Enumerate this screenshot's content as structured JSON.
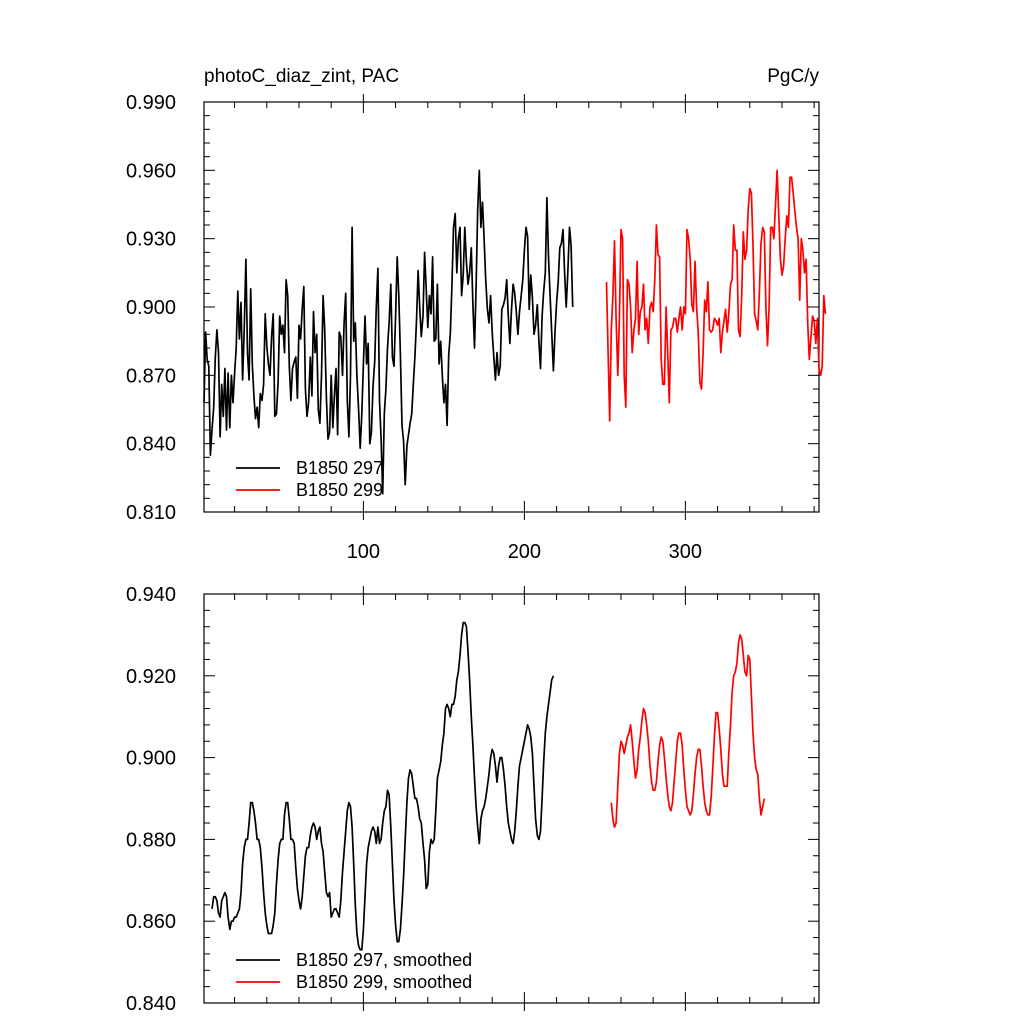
{
  "chart_data": [
    {
      "type": "line",
      "title_left": "photoC_diaz_zint, PAC",
      "title_right": "PgC/y",
      "xlim": [
        1,
        383
      ],
      "ylim": [
        0.81,
        0.99
      ],
      "xticks": [
        100,
        200,
        300
      ],
      "xtick_labels": [
        "100",
        "200",
        "300"
      ],
      "yticks": [
        0.81,
        0.84,
        0.87,
        0.9,
        0.93,
        0.96,
        0.99
      ],
      "ytick_labels": [
        "0.810",
        "0.840",
        "0.870",
        "0.900",
        "0.930",
        "0.960",
        "0.990"
      ],
      "legend_position": "bottom-left",
      "grid": false,
      "series": [
        {
          "name": "B1850 297",
          "color": "#000000",
          "x_start": 1,
          "values": [
            0.858,
            0.889,
            0.877,
            0.874,
            0.835,
            0.846,
            0.856,
            0.878,
            0.89,
            0.88,
            0.843,
            0.866,
            0.852,
            0.873,
            0.846,
            0.871,
            0.847,
            0.87,
            0.858,
            0.871,
            0.882,
            0.907,
            0.886,
            0.902,
            0.868,
            0.89,
            0.921,
            0.88,
            0.868,
            0.908,
            0.875,
            0.861,
            0.851,
            0.856,
            0.847,
            0.862,
            0.859,
            0.866,
            0.897,
            0.883,
            0.875,
            0.87,
            0.887,
            0.897,
            0.852,
            0.853,
            0.867,
            0.896,
            0.888,
            0.892,
            0.88,
            0.912,
            0.905,
            0.874,
            0.859,
            0.873,
            0.876,
            0.878,
            0.86,
            0.892,
            0.886,
            0.899,
            0.909,
            0.864,
            0.852,
            0.858,
            0.878,
            0.861,
            0.898,
            0.88,
            0.888,
            0.855,
            0.849,
            0.87,
            0.905,
            0.89,
            0.86,
            0.842,
            0.845,
            0.87,
            0.847,
            0.861,
            0.873,
            0.844,
            0.889,
            0.887,
            0.87,
            0.893,
            0.906,
            0.859,
            0.843,
            0.87,
            0.935,
            0.885,
            0.893,
            0.87,
            0.855,
            0.838,
            0.853,
            0.875,
            0.896,
            0.875,
            0.884,
            0.84,
            0.845,
            0.865,
            0.876,
            0.9,
            0.917,
            0.859,
            0.842,
            0.818,
            0.853,
            0.864,
            0.882,
            0.893,
            0.91,
            0.878,
            0.874,
            0.896,
            0.922,
            0.905,
            0.879,
            0.848,
            0.841,
            0.822,
            0.839,
            0.844,
            0.849,
            0.853,
            0.866,
            0.878,
            0.894,
            0.916,
            0.9,
            0.887,
            0.896,
            0.924,
            0.908,
            0.891,
            0.905,
            0.897,
            0.922,
            0.885,
            0.886,
            0.91,
            0.875,
            0.885,
            0.87,
            0.858,
            0.866,
            0.848,
            0.879,
            0.888,
            0.909,
            0.935,
            0.941,
            0.915,
            0.93,
            0.935,
            0.905,
            0.914,
            0.935,
            0.92,
            0.91,
            0.915,
            0.926,
            0.901,
            0.882,
            0.909,
            0.943,
            0.96,
            0.935,
            0.946,
            0.93,
            0.912,
            0.899,
            0.893,
            0.905,
            0.889,
            0.878,
            0.868,
            0.88,
            0.87,
            0.874,
            0.899,
            0.901,
            0.904,
            0.912,
            0.896,
            0.884,
            0.899,
            0.91,
            0.906,
            0.898,
            0.888,
            0.898,
            0.905,
            0.912,
            0.925,
            0.935,
            0.931,
            0.899,
            0.914,
            0.904,
            0.888,
            0.892,
            0.901,
            0.885,
            0.873,
            0.896,
            0.907,
            0.915,
            0.948,
            0.922,
            0.905,
            0.889,
            0.872,
            0.889,
            0.902,
            0.911,
            0.926,
            0.928,
            0.934,
            0.915,
            0.9,
            0.915,
            0.935,
            0.927,
            0.9
          ],
          "note": ""
        },
        {
          "name": "B1850 299",
          "color": "#ff0000",
          "x_start": 251,
          "values": [
            0.911,
            0.88,
            0.85,
            0.89,
            0.905,
            0.929,
            0.895,
            0.87,
            0.895,
            0.934,
            0.93,
            0.87,
            0.856,
            0.912,
            0.91,
            0.9,
            0.88,
            0.89,
            0.895,
            0.92,
            0.888,
            0.898,
            0.9,
            0.91,
            0.89,
            0.895,
            0.884,
            0.9,
            0.902,
            0.898,
            0.912,
            0.936,
            0.923,
            0.922,
            0.877,
            0.866,
            0.866,
            0.9,
            0.88,
            0.858,
            0.89,
            0.891,
            0.895,
            0.895,
            0.889,
            0.895,
            0.9,
            0.89,
            0.9,
            0.897,
            0.934,
            0.93,
            0.921,
            0.901,
            0.898,
            0.92,
            0.9,
            0.888,
            0.867,
            0.864,
            0.88,
            0.903,
            0.898,
            0.911,
            0.89,
            0.889,
            0.89,
            0.895,
            0.894,
            0.892,
            0.895,
            0.88,
            0.889,
            0.894,
            0.899,
            0.889,
            0.897,
            0.91,
            0.912,
            0.936,
            0.925,
            0.925,
            0.89,
            0.887,
            0.905,
            0.933,
            0.921,
            0.925,
            0.943,
            0.952,
            0.95,
            0.927,
            0.897,
            0.894,
            0.89,
            0.907,
            0.928,
            0.935,
            0.933,
            0.9,
            0.883,
            0.9,
            0.935,
            0.935,
            0.93,
            0.945,
            0.96,
            0.94,
            0.921,
            0.914,
            0.918,
            0.93,
            0.94,
            0.935,
            0.957,
            0.957,
            0.95,
            0.942,
            0.935,
            0.93,
            0.903,
            0.93,
            0.925,
            0.915,
            0.921,
            0.893,
            0.877,
            0.887,
            0.896,
            0.894,
            0.884,
            0.895,
            0.873,
            0.87,
            0.874,
            0.905,
            0.897
          ]
        }
      ]
    },
    {
      "type": "line",
      "title": "",
      "xlim": [
        1,
        383
      ],
      "ylim": [
        0.84,
        0.94
      ],
      "xticks": [
        100,
        200,
        300
      ],
      "yticks": [
        0.84,
        0.86,
        0.88,
        0.9,
        0.92,
        0.94
      ],
      "ytick_labels": [
        "0.840",
        "0.860",
        "0.880",
        "0.900",
        "0.920",
        "0.940"
      ],
      "legend_position": "bottom-left",
      "grid": false,
      "series": [
        {
          "name": "B1850 297, smoothed",
          "color": "#000000",
          "x_start": 6,
          "values": [
            0.863,
            0.866,
            0.866,
            0.865,
            0.862,
            0.861,
            0.865,
            0.866,
            0.867,
            0.866,
            0.861,
            0.858,
            0.86,
            0.86,
            0.861,
            0.861,
            0.862,
            0.863,
            0.867,
            0.874,
            0.878,
            0.88,
            0.88,
            0.884,
            0.889,
            0.889,
            0.887,
            0.884,
            0.88,
            0.88,
            0.878,
            0.873,
            0.867,
            0.862,
            0.859,
            0.857,
            0.857,
            0.857,
            0.859,
            0.862,
            0.869,
            0.875,
            0.879,
            0.88,
            0.88,
            0.886,
            0.889,
            0.889,
            0.885,
            0.88,
            0.88,
            0.879,
            0.873,
            0.868,
            0.865,
            0.863,
            0.866,
            0.871,
            0.876,
            0.878,
            0.878,
            0.881,
            0.883,
            0.884,
            0.883,
            0.88,
            0.882,
            0.883,
            0.879,
            0.877,
            0.872,
            0.867,
            0.866,
            0.867,
            0.861,
            0.862,
            0.863,
            0.863,
            0.862,
            0.861,
            0.865,
            0.872,
            0.877,
            0.882,
            0.887,
            0.889,
            0.888,
            0.883,
            0.874,
            0.864,
            0.857,
            0.854,
            0.853,
            0.853,
            0.858,
            0.866,
            0.874,
            0.878,
            0.88,
            0.882,
            0.883,
            0.882,
            0.879,
            0.883,
            0.879,
            0.88,
            0.884,
            0.887,
            0.888,
            0.892,
            0.891,
            0.883,
            0.874,
            0.865,
            0.859,
            0.855,
            0.855,
            0.858,
            0.864,
            0.871,
            0.88,
            0.889,
            0.895,
            0.897,
            0.896,
            0.893,
            0.89,
            0.89,
            0.888,
            0.885,
            0.884,
            0.879,
            0.875,
            0.868,
            0.869,
            0.877,
            0.88,
            0.879,
            0.88,
            0.887,
            0.895,
            0.897,
            0.899,
            0.903,
            0.906,
            0.912,
            0.913,
            0.912,
            0.91,
            0.913,
            0.913,
            0.915,
            0.919,
            0.921,
            0.925,
            0.93,
            0.933,
            0.933,
            0.932,
            0.926,
            0.919,
            0.91,
            0.903,
            0.895,
            0.888,
            0.883,
            0.879,
            0.885,
            0.887,
            0.888,
            0.89,
            0.893,
            0.896,
            0.9,
            0.902,
            0.901,
            0.898,
            0.894,
            0.898,
            0.9,
            0.9,
            0.897,
            0.893,
            0.888,
            0.884,
            0.882,
            0.88,
            0.879,
            0.882,
            0.887,
            0.893,
            0.898,
            0.9,
            0.902,
            0.904,
            0.906,
            0.908,
            0.907,
            0.905,
            0.901,
            0.893,
            0.885,
            0.881,
            0.88,
            0.882,
            0.89,
            0.899,
            0.906,
            0.91,
            0.913,
            0.916,
            0.919,
            0.92
          ]
        },
        {
          "name": "B1850 299, smoothed",
          "color": "#ff0000",
          "x_start": 254,
          "values": [
            0.889,
            0.885,
            0.883,
            0.884,
            0.893,
            0.901,
            0.904,
            0.903,
            0.901,
            0.903,
            0.905,
            0.906,
            0.908,
            0.904,
            0.899,
            0.895,
            0.897,
            0.902,
            0.905,
            0.909,
            0.912,
            0.911,
            0.908,
            0.904,
            0.898,
            0.894,
            0.892,
            0.892,
            0.894,
            0.899,
            0.903,
            0.905,
            0.904,
            0.9,
            0.895,
            0.891,
            0.888,
            0.887,
            0.889,
            0.894,
            0.899,
            0.904,
            0.906,
            0.906,
            0.903,
            0.897,
            0.892,
            0.888,
            0.887,
            0.886,
            0.887,
            0.891,
            0.896,
            0.9,
            0.902,
            0.902,
            0.898,
            0.893,
            0.889,
            0.887,
            0.886,
            0.886,
            0.89,
            0.897,
            0.905,
            0.911,
            0.911,
            0.907,
            0.902,
            0.896,
            0.893,
            0.893,
            0.893,
            0.901,
            0.908,
            0.916,
            0.92,
            0.921,
            0.923,
            0.928,
            0.93,
            0.929,
            0.925,
            0.921,
            0.92,
            0.925,
            0.924,
            0.915,
            0.906,
            0.9,
            0.897,
            0.896,
            0.89,
            0.886,
            0.888,
            0.89
          ]
        }
      ]
    }
  ]
}
